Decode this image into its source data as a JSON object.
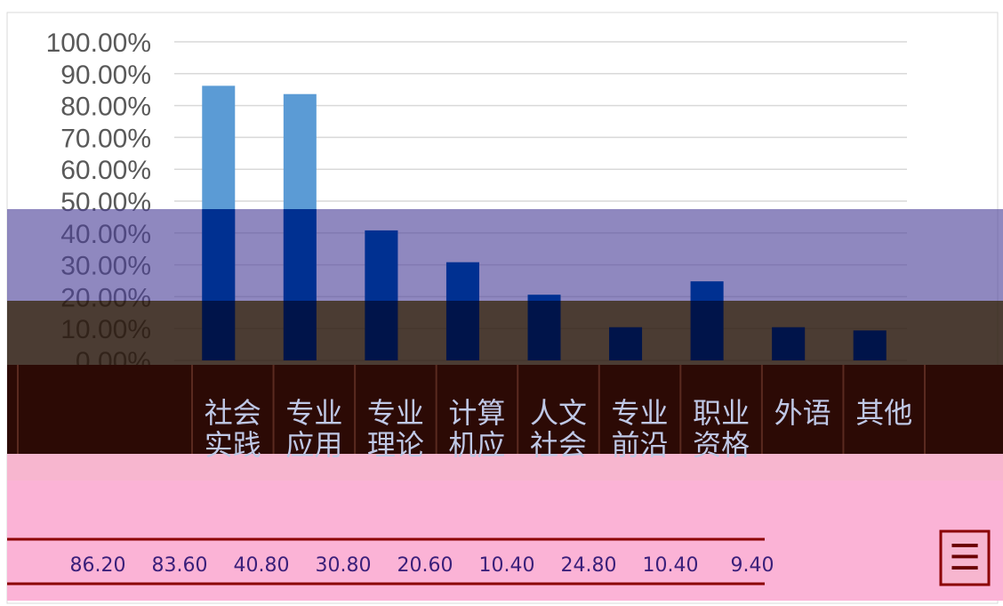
{
  "chart_data": {
    "type": "bar",
    "categories": [
      "社会实践",
      "专业应用",
      "专业理论",
      "计算机应",
      "人文社会",
      "专业前沿",
      "职业资格",
      "外语",
      "其他"
    ],
    "values": [
      86.2,
      83.6,
      40.8,
      30.8,
      20.6,
      10.4,
      24.8,
      10.4,
      9.4
    ],
    "yticks": [
      "0.00%",
      "10.00%",
      "20.00%",
      "30.00%",
      "40.00%",
      "50.00%",
      "60.00%",
      "70.00%",
      "80.00%",
      "90.00%",
      "100.00%"
    ],
    "ylim": [
      0,
      100
    ],
    "grid": true,
    "legend": "right",
    "legend_symbol": "☰",
    "bar_color": "#5b9bd5",
    "table_row_values": [
      "86.20",
      "83.60",
      "40.80",
      "30.80",
      "20.60",
      "10.40",
      "24.80",
      "10.40",
      "9.40"
    ],
    "title": "",
    "xlabel": "",
    "ylabel": ""
  },
  "colors": {
    "band_purple": "#8e88bb",
    "band_brown": "#4a3a30",
    "band_maroon": "#2c0a05",
    "band_pink": "#fbb3d6"
  }
}
